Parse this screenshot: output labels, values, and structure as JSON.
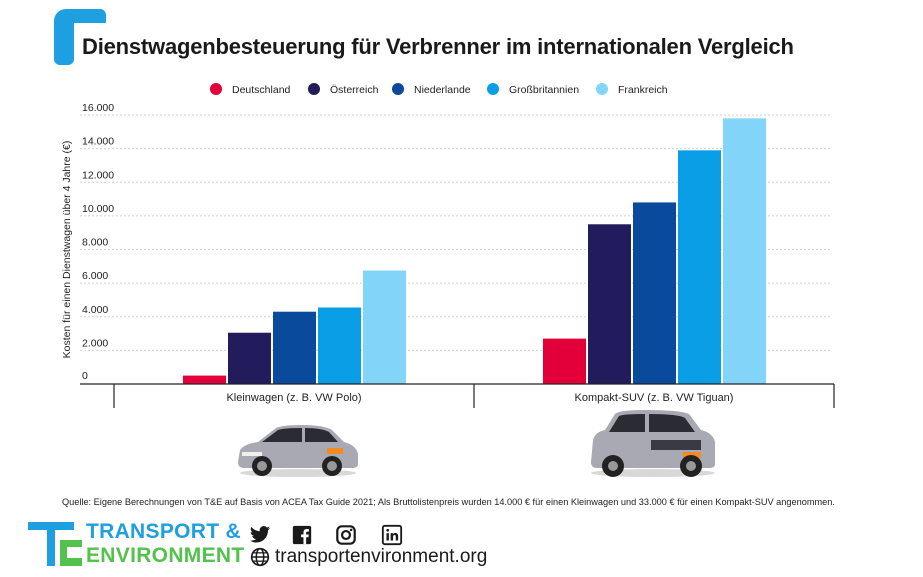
{
  "title": "Dienstwagenbesteuerung für Verbrenner im internationalen Vergleich",
  "source": "Quelle: Eigene Berechnungen von T&E auf Basis von ACEA Tax Guide 2021; Als Bruttolistenpreis wurden 14.000 € für einen Kleinwagen und 33.000 € für einen Kompakt-SUV angenommen.",
  "logo": {
    "line1": "TRANSPORT &",
    "line2": "ENVIRONMENT"
  },
  "website": "transportenvironment.org",
  "icons": [
    "twitter-icon",
    "facebook-icon",
    "instagram-icon",
    "linkedin-icon",
    "globe-icon"
  ],
  "colors": {
    "accent": "#1e9fe0",
    "green": "#52c24c"
  },
  "chart_data": {
    "type": "bar",
    "categories": [
      "Kleinwagen (z. B. VW Polo)",
      "Kompakt-SUV (z. B. VW Tiguan)"
    ],
    "series": [
      {
        "name": "Deutschland",
        "color": "#e3003a",
        "values": [
          500,
          2700
        ]
      },
      {
        "name": "Österreich",
        "color": "#231c5c",
        "values": [
          3050,
          9500
        ]
      },
      {
        "name": "Niederlande",
        "color": "#0a4a9c",
        "values": [
          4300,
          10800
        ]
      },
      {
        "name": "Großbritannien",
        "color": "#0a9ee6",
        "values": [
          4550,
          13900
        ]
      },
      {
        "name": "Frankreich",
        "color": "#82d4f8",
        "values": [
          6750,
          15800
        ]
      }
    ],
    "ylabel": "Kosten für einen Dienstwagen über 4 Jahre (€)",
    "ylim": [
      0,
      16000
    ],
    "yticks": [
      0,
      2000,
      4000,
      6000,
      8000,
      10000,
      12000,
      14000,
      16000
    ],
    "ytick_labels": [
      "0",
      "2.000",
      "4.000",
      "6.000",
      "8.000",
      "10.000",
      "12.000",
      "14.000",
      "16.000"
    ],
    "grid": true,
    "legend": "top"
  }
}
